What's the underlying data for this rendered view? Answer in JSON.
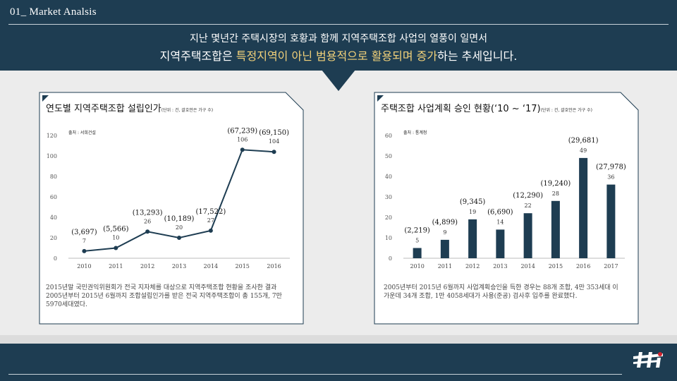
{
  "header": {
    "title": "01_ Market Analsis",
    "subtitle_line1": "지난 몇년간 주택시장의 호황과 함께 지역주택조합 사업의 열풍이 일면서",
    "subtitle_line2_pre": "지역주택조합은 ",
    "subtitle_line2_hl1": "특정지역이 아닌 범용적으로 활용되며 증가",
    "subtitle_line2_post": "하는 추세입니다."
  },
  "colors": {
    "navy": "#1e3d52",
    "accent": "#f3d27a",
    "line": "#1e3d52",
    "bar": "#1e3d52"
  },
  "left_panel": {
    "title": "연도별 지역주택조합 설립인가",
    "unit": "(단위 : 건, 괄호안은 가구 수)",
    "source": "출처 : 서희건설",
    "description": "2015년말 국민권익위원회가 전국 지자체를 대상으로 지역주택조합 현황을 조사한 결과 2005년부터 2015년 6월까지 조합설립인가를 받은 전국 지역주택조합이 총 155개, 7만 5970세대였다."
  },
  "right_panel": {
    "title": "주택조합 사업계획 승인 현황(‘10 ~ ‘17)",
    "unit": "(단위 : 건, 괄호안은 가구 수)",
    "source": "출처 : 통계청",
    "description": "2005년부터 2015년 6월까지 사업계획승인을 득한 경우는 88개 조합, 4만 353세대 이 가운데 34개 조합, 1만 4058세대가 사용(준공) 검사후 입주를 완료했다."
  },
  "chart_data": [
    {
      "type": "line",
      "title": "연도별 지역주택조합 설립인가",
      "categories": [
        "2010",
        "2011",
        "2012",
        "2013",
        "2014",
        "2015",
        "2016"
      ],
      "values": [
        7,
        10,
        26,
        20,
        27,
        106,
        104
      ],
      "labels": [
        "(3,697)",
        "(5,566)",
        "(13,293)",
        "(10,189)",
        "(17,522)",
        "(67,239)",
        "(69,150)"
      ],
      "yticks": [
        "0",
        "20",
        "40",
        "60",
        "80",
        "100",
        "120"
      ],
      "ylim": [
        0,
        120
      ]
    },
    {
      "type": "bar",
      "title": "주택조합 사업계획 승인 현황(‘10 ~ ‘17)",
      "categories": [
        "2010",
        "2011",
        "2012",
        "2013",
        "2014",
        "2015",
        "2016",
        "2017"
      ],
      "values": [
        5,
        9,
        19,
        14,
        22,
        28,
        49,
        36
      ],
      "labels": [
        "(2,219)",
        "(4,899)",
        "(9,345)",
        "(6,690)",
        "(12,290)",
        "(19,240)",
        "(29,681)",
        "(27,978)"
      ],
      "yticks": [
        "0",
        "10",
        "20",
        "30",
        "40",
        "50",
        "60"
      ],
      "ylim": [
        0,
        60
      ]
    }
  ]
}
